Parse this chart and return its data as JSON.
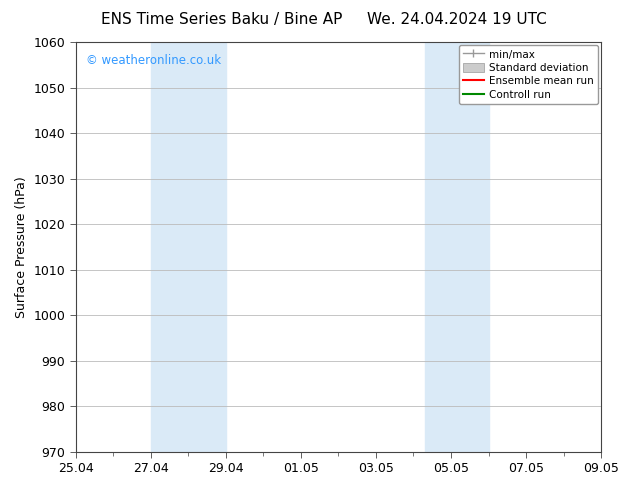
{
  "title_left": "ENS Time Series Baku / Bine AP",
  "title_right": "We. 24.04.2024 19 UTC",
  "ylabel": "Surface Pressure (hPa)",
  "ylim": [
    970,
    1060
  ],
  "yticks": [
    970,
    980,
    990,
    1000,
    1010,
    1020,
    1030,
    1040,
    1050,
    1060
  ],
  "xlabel_ticks": [
    "25.04",
    "27.04",
    "29.04",
    "01.05",
    "03.05",
    "05.05",
    "07.05",
    "09.05"
  ],
  "x_tick_positions": [
    0,
    2,
    4,
    6,
    8,
    10,
    12,
    14
  ],
  "shade_regions": [
    {
      "x_start": 2.0,
      "x_end": 4.0
    },
    {
      "x_start": 9.3,
      "x_end": 11.0
    }
  ],
  "shade_color": "#daeaf7",
  "watermark_text": "© weatheronline.co.uk",
  "watermark_color": "#3399ff",
  "legend_labels": [
    "min/max",
    "Standard deviation",
    "Ensemble mean run",
    "Controll run"
  ],
  "legend_colors": [
    "#999999",
    "#cccccc",
    "#ff0000",
    "#008800"
  ],
  "bg_color": "#ffffff",
  "grid_color": "#bbbbbb",
  "spine_color": "#444444",
  "font_color": "#000000",
  "title_fontsize": 11,
  "tick_fontsize": 9,
  "ylabel_fontsize": 9,
  "watermark_fontsize": 8.5
}
